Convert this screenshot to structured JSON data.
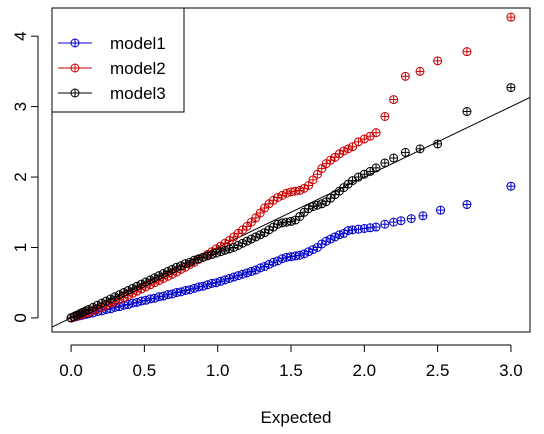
{
  "chart_data": {
    "type": "scatter",
    "title": "",
    "xlabel": "Expected",
    "ylabel": "",
    "xlim": [
      -0.13,
      3.13
    ],
    "ylim": [
      -0.2,
      4.4
    ],
    "xticks": [
      "0.0",
      "0.5",
      "1.0",
      "1.5",
      "2.0",
      "2.5",
      "3.0"
    ],
    "xtick_values": [
      0,
      0.5,
      1.0,
      1.5,
      2.0,
      2.5,
      3.0
    ],
    "yticks": [
      "0",
      "1",
      "2",
      "3",
      "4"
    ],
    "ytick_values": [
      0,
      1,
      2,
      3,
      4
    ],
    "grid": false,
    "legend_position": "top-left",
    "reference_line": {
      "slope": 1,
      "intercept": 0
    },
    "marker": "circle-plus",
    "series": [
      {
        "name": "model1",
        "color": "#0000cc",
        "points": [
          [
            0.0,
            0.0
          ],
          [
            0.02,
            0.01
          ],
          [
            0.04,
            0.02
          ],
          [
            0.06,
            0.03
          ],
          [
            0.08,
            0.04
          ],
          [
            0.1,
            0.05
          ],
          [
            0.12,
            0.06
          ],
          [
            0.15,
            0.07
          ],
          [
            0.18,
            0.09
          ],
          [
            0.21,
            0.1
          ],
          [
            0.24,
            0.12
          ],
          [
            0.27,
            0.13
          ],
          [
            0.3,
            0.15
          ],
          [
            0.33,
            0.16
          ],
          [
            0.36,
            0.18
          ],
          [
            0.39,
            0.19
          ],
          [
            0.42,
            0.21
          ],
          [
            0.45,
            0.22
          ],
          [
            0.48,
            0.24
          ],
          [
            0.51,
            0.25
          ],
          [
            0.54,
            0.27
          ],
          [
            0.57,
            0.28
          ],
          [
            0.6,
            0.3
          ],
          [
            0.63,
            0.31
          ],
          [
            0.66,
            0.33
          ],
          [
            0.69,
            0.34
          ],
          [
            0.72,
            0.36
          ],
          [
            0.75,
            0.37
          ],
          [
            0.78,
            0.39
          ],
          [
            0.81,
            0.4
          ],
          [
            0.84,
            0.42
          ],
          [
            0.87,
            0.44
          ],
          [
            0.9,
            0.45
          ],
          [
            0.93,
            0.47
          ],
          [
            0.96,
            0.49
          ],
          [
            0.99,
            0.5
          ],
          [
            1.02,
            0.52
          ],
          [
            1.05,
            0.54
          ],
          [
            1.08,
            0.56
          ],
          [
            1.11,
            0.58
          ],
          [
            1.14,
            0.6
          ],
          [
            1.17,
            0.62
          ],
          [
            1.2,
            0.64
          ],
          [
            1.23,
            0.66
          ],
          [
            1.26,
            0.68
          ],
          [
            1.29,
            0.71
          ],
          [
            1.32,
            0.73
          ],
          [
            1.35,
            0.76
          ],
          [
            1.38,
            0.79
          ],
          [
            1.41,
            0.81
          ],
          [
            1.44,
            0.84
          ],
          [
            1.47,
            0.86
          ],
          [
            1.5,
            0.87
          ],
          [
            1.53,
            0.88
          ],
          [
            1.56,
            0.89
          ],
          [
            1.59,
            0.91
          ],
          [
            1.62,
            0.94
          ],
          [
            1.65,
            0.97
          ],
          [
            1.68,
            1.0
          ],
          [
            1.71,
            1.05
          ],
          [
            1.74,
            1.09
          ],
          [
            1.77,
            1.12
          ],
          [
            1.8,
            1.15
          ],
          [
            1.83,
            1.18
          ],
          [
            1.86,
            1.2
          ],
          [
            1.89,
            1.24
          ],
          [
            1.92,
            1.25
          ],
          [
            1.96,
            1.26
          ],
          [
            2.0,
            1.27
          ],
          [
            2.04,
            1.28
          ],
          [
            2.08,
            1.29
          ],
          [
            2.14,
            1.33
          ],
          [
            2.2,
            1.36
          ],
          [
            2.25,
            1.38
          ],
          [
            2.32,
            1.41
          ],
          [
            2.4,
            1.45
          ],
          [
            2.52,
            1.53
          ],
          [
            2.7,
            1.61
          ],
          [
            3.0,
            1.87
          ]
        ]
      },
      {
        "name": "model2",
        "color": "#cc0000",
        "points": [
          [
            0.0,
            0.0
          ],
          [
            0.02,
            0.01
          ],
          [
            0.04,
            0.03
          ],
          [
            0.06,
            0.04
          ],
          [
            0.08,
            0.05
          ],
          [
            0.1,
            0.07
          ],
          [
            0.12,
            0.08
          ],
          [
            0.15,
            0.1
          ],
          [
            0.18,
            0.13
          ],
          [
            0.21,
            0.15
          ],
          [
            0.24,
            0.18
          ],
          [
            0.27,
            0.21
          ],
          [
            0.3,
            0.23
          ],
          [
            0.33,
            0.26
          ],
          [
            0.36,
            0.29
          ],
          [
            0.39,
            0.32
          ],
          [
            0.42,
            0.35
          ],
          [
            0.45,
            0.38
          ],
          [
            0.48,
            0.41
          ],
          [
            0.51,
            0.44
          ],
          [
            0.54,
            0.47
          ],
          [
            0.57,
            0.5
          ],
          [
            0.6,
            0.53
          ],
          [
            0.63,
            0.56
          ],
          [
            0.66,
            0.59
          ],
          [
            0.69,
            0.62
          ],
          [
            0.72,
            0.65
          ],
          [
            0.75,
            0.69
          ],
          [
            0.78,
            0.72
          ],
          [
            0.81,
            0.76
          ],
          [
            0.84,
            0.79
          ],
          [
            0.87,
            0.83
          ],
          [
            0.9,
            0.86
          ],
          [
            0.93,
            0.9
          ],
          [
            0.96,
            0.94
          ],
          [
            0.99,
            0.98
          ],
          [
            1.02,
            1.02
          ],
          [
            1.05,
            1.06
          ],
          [
            1.08,
            1.1
          ],
          [
            1.11,
            1.15
          ],
          [
            1.14,
            1.2
          ],
          [
            1.17,
            1.25
          ],
          [
            1.2,
            1.3
          ],
          [
            1.23,
            1.36
          ],
          [
            1.26,
            1.42
          ],
          [
            1.29,
            1.49
          ],
          [
            1.32,
            1.56
          ],
          [
            1.35,
            1.62
          ],
          [
            1.38,
            1.67
          ],
          [
            1.41,
            1.71
          ],
          [
            1.44,
            1.74
          ],
          [
            1.47,
            1.77
          ],
          [
            1.5,
            1.79
          ],
          [
            1.53,
            1.8
          ],
          [
            1.56,
            1.81
          ],
          [
            1.59,
            1.84
          ],
          [
            1.62,
            1.88
          ],
          [
            1.65,
            1.96
          ],
          [
            1.68,
            2.04
          ],
          [
            1.71,
            2.12
          ],
          [
            1.74,
            2.19
          ],
          [
            1.77,
            2.24
          ],
          [
            1.8,
            2.28
          ],
          [
            1.83,
            2.33
          ],
          [
            1.86,
            2.37
          ],
          [
            1.89,
            2.4
          ],
          [
            1.92,
            2.43
          ],
          [
            1.96,
            2.5
          ],
          [
            2.0,
            2.54
          ],
          [
            2.04,
            2.58
          ],
          [
            2.08,
            2.63
          ],
          [
            2.14,
            2.86
          ],
          [
            2.2,
            3.1
          ],
          [
            2.28,
            3.43
          ],
          [
            2.38,
            3.5
          ],
          [
            2.5,
            3.65
          ],
          [
            2.7,
            3.78
          ],
          [
            3.0,
            4.27
          ]
        ]
      },
      {
        "name": "model3",
        "color": "#000000",
        "points": [
          [
            0.0,
            0.0
          ],
          [
            0.02,
            0.02
          ],
          [
            0.04,
            0.04
          ],
          [
            0.06,
            0.06
          ],
          [
            0.08,
            0.08
          ],
          [
            0.1,
            0.1
          ],
          [
            0.12,
            0.12
          ],
          [
            0.15,
            0.15
          ],
          [
            0.18,
            0.18
          ],
          [
            0.21,
            0.21
          ],
          [
            0.24,
            0.24
          ],
          [
            0.27,
            0.27
          ],
          [
            0.3,
            0.3
          ],
          [
            0.33,
            0.33
          ],
          [
            0.36,
            0.36
          ],
          [
            0.39,
            0.39
          ],
          [
            0.42,
            0.42
          ],
          [
            0.45,
            0.45
          ],
          [
            0.48,
            0.48
          ],
          [
            0.51,
            0.51
          ],
          [
            0.54,
            0.54
          ],
          [
            0.57,
            0.57
          ],
          [
            0.6,
            0.6
          ],
          [
            0.63,
            0.63
          ],
          [
            0.66,
            0.66
          ],
          [
            0.69,
            0.69
          ],
          [
            0.72,
            0.72
          ],
          [
            0.75,
            0.74
          ],
          [
            0.78,
            0.77
          ],
          [
            0.81,
            0.79
          ],
          [
            0.84,
            0.82
          ],
          [
            0.87,
            0.84
          ],
          [
            0.9,
            0.86
          ],
          [
            0.93,
            0.88
          ],
          [
            0.96,
            0.9
          ],
          [
            0.99,
            0.92
          ],
          [
            1.02,
            0.94
          ],
          [
            1.05,
            0.96
          ],
          [
            1.08,
            0.98
          ],
          [
            1.11,
            1.0
          ],
          [
            1.14,
            1.03
          ],
          [
            1.17,
            1.06
          ],
          [
            1.2,
            1.09
          ],
          [
            1.23,
            1.12
          ],
          [
            1.26,
            1.15
          ],
          [
            1.29,
            1.18
          ],
          [
            1.32,
            1.21
          ],
          [
            1.35,
            1.25
          ],
          [
            1.38,
            1.29
          ],
          [
            1.41,
            1.33
          ],
          [
            1.44,
            1.35
          ],
          [
            1.47,
            1.36
          ],
          [
            1.5,
            1.37
          ],
          [
            1.53,
            1.39
          ],
          [
            1.56,
            1.44
          ],
          [
            1.59,
            1.5
          ],
          [
            1.62,
            1.55
          ],
          [
            1.65,
            1.58
          ],
          [
            1.68,
            1.6
          ],
          [
            1.71,
            1.62
          ],
          [
            1.74,
            1.65
          ],
          [
            1.77,
            1.7
          ],
          [
            1.8,
            1.75
          ],
          [
            1.83,
            1.8
          ],
          [
            1.86,
            1.85
          ],
          [
            1.89,
            1.9
          ],
          [
            1.92,
            1.95
          ],
          [
            1.96,
            2.0
          ],
          [
            2.0,
            2.04
          ],
          [
            2.04,
            2.08
          ],
          [
            2.08,
            2.13
          ],
          [
            2.14,
            2.2
          ],
          [
            2.2,
            2.27
          ],
          [
            2.28,
            2.35
          ],
          [
            2.38,
            2.4
          ],
          [
            2.5,
            2.47
          ],
          [
            2.7,
            2.93
          ],
          [
            3.0,
            3.27
          ]
        ]
      }
    ]
  }
}
